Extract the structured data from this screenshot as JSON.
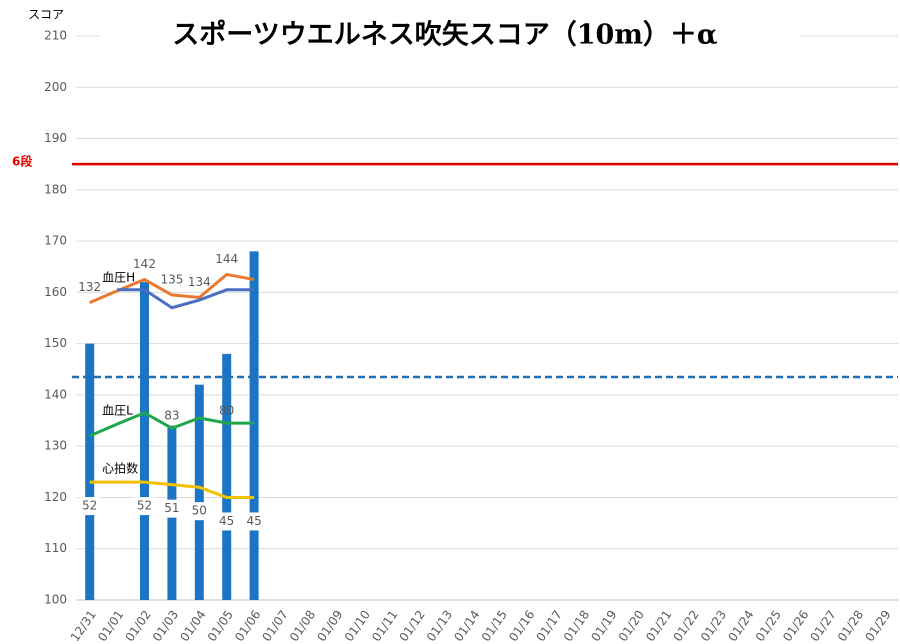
{
  "chart_data": {
    "type": "bar",
    "title": "スポーツウエルネス吹矢スコア（10m）＋α",
    "y_label": "スコア",
    "ylim": [
      100,
      210
    ],
    "yticks": [
      100,
      110,
      120,
      130,
      140,
      150,
      160,
      170,
      180,
      190,
      200,
      210
    ],
    "grid": true,
    "categories": [
      "12/31",
      "01/01",
      "01/02",
      "01/03",
      "01/04",
      "01/05",
      "01/06",
      "01/07",
      "01/08",
      "01/09",
      "01/10",
      "01/11",
      "01/12",
      "01/13",
      "01/14",
      "01/15",
      "01/16",
      "01/17",
      "01/18",
      "01/19",
      "01/20",
      "01/21",
      "01/22",
      "01/23",
      "01/24",
      "01/25",
      "01/26",
      "01/27",
      "01/28",
      "01/29"
    ],
    "values": [
      150,
      null,
      162,
      134,
      142,
      148,
      168,
      null,
      null,
      null,
      null,
      null,
      null,
      null,
      null,
      null,
      null,
      null,
      null,
      null,
      null,
      null,
      null,
      null,
      null,
      null,
      null,
      null,
      null,
      null
    ],
    "color": "#1b75c4",
    "series": [
      {
        "name": "血圧H",
        "color": "#e8792f",
        "values": [
          158,
          160.3,
          162.5,
          159.5,
          159,
          163.5,
          162.5,
          null,
          null,
          null,
          null,
          null,
          null,
          null,
          null,
          null,
          null,
          null,
          null,
          null,
          null,
          null,
          null,
          null,
          null,
          null,
          null,
          null,
          null,
          null
        ],
        "point_labels": [
          "132",
          null,
          "142",
          "135",
          "134",
          "144",
          null,
          null,
          null,
          null,
          null,
          null,
          null,
          null,
          null,
          null,
          null,
          null,
          null,
          null,
          null,
          null,
          null,
          null,
          null,
          null,
          null,
          null,
          null,
          null
        ]
      },
      {
        "color": "#4a6fc2",
        "values": [
          null,
          160.5,
          160.5,
          157,
          158.5,
          160.5,
          160.5,
          null,
          null,
          null,
          null,
          null,
          null,
          null,
          null,
          null,
          null,
          null,
          null,
          null,
          null,
          null,
          null,
          null,
          null,
          null,
          null,
          null,
          null,
          null
        ]
      },
      {
        "name": "血圧L",
        "color": "#1fa84a",
        "values": [
          132,
          134.3,
          136.5,
          133.5,
          135.5,
          134.5,
          134.5,
          null,
          null,
          null,
          null,
          null,
          null,
          null,
          null,
          null,
          null,
          null,
          null,
          null,
          null,
          null,
          null,
          null,
          null,
          null,
          null,
          null,
          null,
          null
        ],
        "point_labels": [
          null,
          null,
          null,
          "83",
          null,
          "80",
          null,
          null,
          null,
          null,
          null,
          null,
          null,
          null,
          null,
          null,
          null,
          null,
          null,
          null,
          null,
          null,
          null,
          null,
          null,
          null,
          null,
          null,
          null,
          null
        ]
      },
      {
        "name": "心拍数",
        "color": "#f2c200",
        "values": [
          123,
          123,
          123,
          122.5,
          122,
          120,
          120,
          null,
          null,
          null,
          null,
          null,
          null,
          null,
          null,
          null,
          null,
          null,
          null,
          null,
          null,
          null,
          null,
          null,
          null,
          null,
          null,
          null,
          null,
          null
        ],
        "point_labels": [
          "52",
          null,
          "52",
          "51",
          "50",
          "45",
          "45",
          null,
          null,
          null,
          null,
          null,
          null,
          null,
          null,
          null,
          null,
          null,
          null,
          null,
          null,
          null,
          null,
          null,
          null,
          null,
          null,
          null,
          null,
          null
        ]
      }
    ],
    "reference_lines": [
      {
        "value": 185,
        "color": "#e00000",
        "label": "6段"
      },
      {
        "value": 143.5,
        "color": "#1f6fb5",
        "dashed": true
      }
    ]
  }
}
